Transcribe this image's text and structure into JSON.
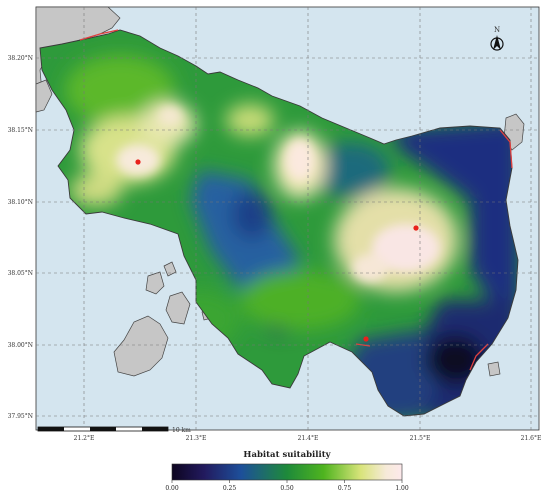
{
  "map": {
    "colors": {
      "sea": "#d4e5ef",
      "land_other": "#c6c6c6",
      "border": "#3a3a3a",
      "coast_highlight": "#e0413e",
      "grid": "#777777",
      "point": "#e8211c"
    },
    "grid": true,
    "lat_labels": [
      "38.20°N",
      "38.15°N",
      "38.10°N",
      "38.05°N",
      "38.00°N",
      "37.95°N"
    ],
    "lon_labels": [
      "21.2°E",
      "21.3°E",
      "21.4°E",
      "21.5°E",
      "21.6°E"
    ],
    "scale_bar": {
      "label": "10 km"
    },
    "north_arrow": {
      "label": "N"
    },
    "points_count": 3
  },
  "legend": {
    "title": "Habitat suitability",
    "ticks": [
      "0.00",
      "0.25",
      "0.50",
      "0.75",
      "1.00"
    ],
    "colors": [
      "#0d0520",
      "#221a5e",
      "#1d4f9a",
      "#1e8a3a",
      "#4fb41f",
      "#d8e47a",
      "#f6ead8",
      "#fde9ec"
    ]
  }
}
